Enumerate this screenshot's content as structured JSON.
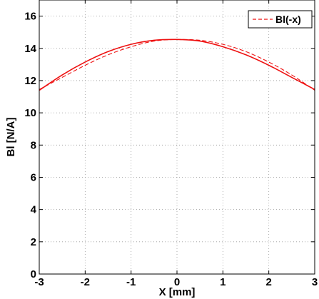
{
  "chart_data": {
    "type": "line",
    "title": "",
    "xlabel": "X [mm]",
    "ylabel": "Bl [N/A]",
    "xlim": [
      -3,
      3
    ],
    "ylim": [
      0,
      17
    ],
    "x_ticks": [
      -3,
      -2,
      -1,
      0,
      1,
      2,
      3
    ],
    "y_ticks": [
      0,
      2,
      4,
      6,
      8,
      10,
      12,
      14,
      16
    ],
    "grid": true,
    "legend_position": "top-right",
    "series": [
      {
        "name": "",
        "color": "#ee1111",
        "style": "solid",
        "x": [
          -3,
          -2.5,
          -2,
          -1.5,
          -1,
          -0.5,
          0,
          0.5,
          1,
          1.5,
          2,
          2.5,
          3
        ],
        "y": [
          11.4,
          12.35,
          13.15,
          13.8,
          14.25,
          14.5,
          14.55,
          14.45,
          14.1,
          13.6,
          12.95,
          12.2,
          11.45
        ]
      },
      {
        "name": "Bl(-x)",
        "color": "#ee1111",
        "style": "dashed",
        "x": [
          -3,
          -2.5,
          -2,
          -1.5,
          -1,
          -0.5,
          0,
          0.5,
          1,
          1.5,
          2,
          2.5,
          3
        ],
        "y": [
          11.45,
          12.2,
          12.95,
          13.6,
          14.1,
          14.45,
          14.55,
          14.5,
          14.25,
          13.8,
          13.15,
          12.35,
          11.4
        ]
      }
    ]
  }
}
